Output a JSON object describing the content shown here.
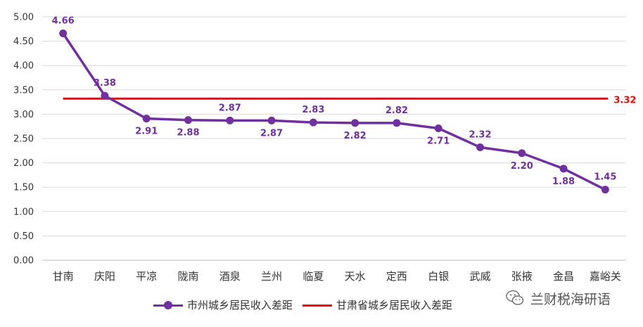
{
  "chart_data": {
    "type": "line",
    "categories": [
      "甘南",
      "庆阳",
      "平凉",
      "陇南",
      "酒泉",
      "兰州",
      "临夏",
      "天水",
      "定西",
      "白银",
      "武威",
      "张掖",
      "金昌",
      "嘉峪关"
    ],
    "series": [
      {
        "name": "市州城乡居民收入差距",
        "values": [
          4.66,
          3.38,
          2.91,
          2.88,
          2.87,
          2.87,
          2.83,
          2.82,
          2.82,
          2.71,
          2.32,
          2.2,
          1.88,
          1.45
        ],
        "labels": [
          "4.66",
          "3.38",
          "2.91",
          "2.88",
          "2.87",
          "2.87",
          "2.83",
          "2.82",
          "2.82",
          "2.71",
          "2.32",
          "2.20",
          "1.88",
          "1.45"
        ],
        "color": "#7030A0"
      }
    ],
    "reference_line": {
      "name": "甘肃省城乡居民收入差距",
      "value": 3.32,
      "label": "3.32",
      "color": "#FF0000"
    },
    "ylim": [
      0,
      5
    ],
    "yticks": [
      "0.00",
      "0.50",
      "1.00",
      "1.50",
      "2.00",
      "2.50",
      "3.00",
      "3.50",
      "4.00",
      "4.50",
      "5.00"
    ],
    "grid": true,
    "legend_position": "bottom"
  },
  "watermark": {
    "text": "兰财税海研语",
    "icon": "wechat-icon"
  }
}
